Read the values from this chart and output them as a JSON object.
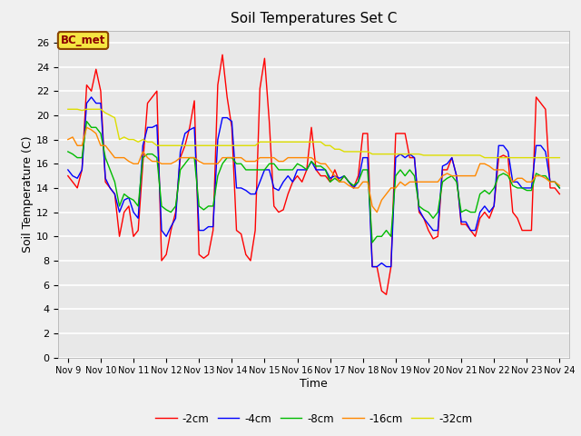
{
  "title": "Soil Temperatures Set C",
  "xlabel": "Time",
  "ylabel": "Soil Temperature (C)",
  "annotation": "BC_met",
  "ylim": [
    0,
    27
  ],
  "yticks": [
    0,
    2,
    4,
    6,
    8,
    10,
    12,
    14,
    16,
    18,
    20,
    22,
    24,
    26
  ],
  "xtick_labels": [
    "Nov 9",
    "Nov 10",
    "Nov 11",
    "Nov 12",
    "Nov 13",
    "Nov 14",
    "Nov 15",
    "Nov 16",
    "Nov 17",
    "Nov 18",
    "Nov 19",
    "Nov 20",
    "Nov 21",
    "Nov 22",
    "Nov 23",
    "Nov 24"
  ],
  "series": {
    "-2cm": {
      "color": "#ff0000",
      "data": [
        15.0,
        14.5,
        14.0,
        15.5,
        22.5,
        22.0,
        23.8,
        22.0,
        14.5,
        14.0,
        13.5,
        10.0,
        12.0,
        12.5,
        10.0,
        10.5,
        16.0,
        21.0,
        21.5,
        22.0,
        8.0,
        8.5,
        10.5,
        12.0,
        16.5,
        17.5,
        19.0,
        21.2,
        8.5,
        8.2,
        8.5,
        10.5,
        22.5,
        25.0,
        21.5,
        19.0,
        10.5,
        10.2,
        8.5,
        8.0,
        10.5,
        22.2,
        24.7,
        19.5,
        12.5,
        12.0,
        12.2,
        13.5,
        14.5,
        15.0,
        14.5,
        15.5,
        19.0,
        15.5,
        15.0,
        15.0,
        14.5,
        15.5,
        14.5,
        15.0,
        14.5,
        14.0,
        15.0,
        18.5,
        18.5,
        7.5,
        7.5,
        5.5,
        5.2,
        7.5,
        18.5,
        18.5,
        18.5,
        16.5,
        16.5,
        12.0,
        11.5,
        10.5,
        9.8,
        10.0,
        15.5,
        15.5,
        16.5,
        15.0,
        11.0,
        11.0,
        10.5,
        10.0,
        11.5,
        12.0,
        11.5,
        12.5,
        16.5,
        16.7,
        16.5,
        12.0,
        11.5,
        10.5,
        10.5,
        10.5,
        21.5,
        21.0,
        20.5,
        14.0,
        14.0,
        13.5
      ]
    },
    "-4cm": {
      "color": "#0000ff",
      "data": [
        15.5,
        15.0,
        14.8,
        15.5,
        21.0,
        21.5,
        21.0,
        21.0,
        14.8,
        14.0,
        13.5,
        12.0,
        13.0,
        13.2,
        12.0,
        11.5,
        17.5,
        19.0,
        19.0,
        19.2,
        10.5,
        10.0,
        10.8,
        11.5,
        17.0,
        18.5,
        18.8,
        19.0,
        10.5,
        10.5,
        10.8,
        10.8,
        18.0,
        19.8,
        19.8,
        19.5,
        14.0,
        14.0,
        13.8,
        13.5,
        13.5,
        14.5,
        15.5,
        15.5,
        14.0,
        13.8,
        14.5,
        15.0,
        14.5,
        15.5,
        15.5,
        15.5,
        16.2,
        15.5,
        15.5,
        15.5,
        14.8,
        15.0,
        14.8,
        15.0,
        14.5,
        14.0,
        14.5,
        16.5,
        16.5,
        7.5,
        7.5,
        7.8,
        7.5,
        7.5,
        16.5,
        16.8,
        16.5,
        16.8,
        16.5,
        12.2,
        11.5,
        11.0,
        10.5,
        10.5,
        15.8,
        16.0,
        16.5,
        15.0,
        11.2,
        11.2,
        10.5,
        10.5,
        12.0,
        12.5,
        12.0,
        12.5,
        17.5,
        17.5,
        17.0,
        14.5,
        14.5,
        14.0,
        14.0,
        14.0,
        17.5,
        17.5,
        17.0,
        14.5,
        14.5,
        14.0
      ]
    },
    "-8cm": {
      "color": "#00bb00",
      "data": [
        17.0,
        16.8,
        16.5,
        16.5,
        19.5,
        19.0,
        19.0,
        18.5,
        16.5,
        15.5,
        14.5,
        12.5,
        13.5,
        13.2,
        13.0,
        12.5,
        16.5,
        16.8,
        16.8,
        16.5,
        12.5,
        12.2,
        12.0,
        12.5,
        15.5,
        16.0,
        16.5,
        16.5,
        12.5,
        12.2,
        12.5,
        12.5,
        15.0,
        16.0,
        16.5,
        16.5,
        16.0,
        16.0,
        15.5,
        15.5,
        15.5,
        15.5,
        15.5,
        16.0,
        16.0,
        15.5,
        15.5,
        15.5,
        15.5,
        16.0,
        15.8,
        15.5,
        16.2,
        15.8,
        15.8,
        15.5,
        14.5,
        14.8,
        14.5,
        15.0,
        14.5,
        14.2,
        14.5,
        15.5,
        15.5,
        9.5,
        10.0,
        10.0,
        10.5,
        10.0,
        15.0,
        15.5,
        15.0,
        15.5,
        15.0,
        12.5,
        12.2,
        12.0,
        11.5,
        12.0,
        14.5,
        14.8,
        15.0,
        14.5,
        12.0,
        12.2,
        12.0,
        12.0,
        13.5,
        13.8,
        13.5,
        14.0,
        15.0,
        15.2,
        15.0,
        14.2,
        14.0,
        14.0,
        13.8,
        13.8,
        15.2,
        15.0,
        15.0,
        14.5,
        14.5,
        14.0
      ]
    },
    "-16cm": {
      "color": "#ff8800",
      "data": [
        18.0,
        18.2,
        17.5,
        17.5,
        19.0,
        18.8,
        18.5,
        17.5,
        17.5,
        17.0,
        16.5,
        16.5,
        16.5,
        16.2,
        16.0,
        16.0,
        17.0,
        16.5,
        16.2,
        16.2,
        16.0,
        16.0,
        16.0,
        16.2,
        16.5,
        16.5,
        16.5,
        16.5,
        16.2,
        16.0,
        16.0,
        16.0,
        16.0,
        16.5,
        16.5,
        16.5,
        16.5,
        16.5,
        16.2,
        16.2,
        16.2,
        16.5,
        16.5,
        16.5,
        16.5,
        16.2,
        16.2,
        16.5,
        16.5,
        16.5,
        16.5,
        16.5,
        16.5,
        16.2,
        16.0,
        16.0,
        15.5,
        15.0,
        14.5,
        14.5,
        14.2,
        14.0,
        14.0,
        14.5,
        14.5,
        12.5,
        12.0,
        13.0,
        13.5,
        14.0,
        14.0,
        14.5,
        14.2,
        14.5,
        14.5,
        14.5,
        14.5,
        14.5,
        14.5,
        14.5,
        15.0,
        15.2,
        15.0,
        15.0,
        15.0,
        15.0,
        15.0,
        15.0,
        16.0,
        16.0,
        15.8,
        15.5,
        15.5,
        15.5,
        15.2,
        14.5,
        14.8,
        14.8,
        14.5,
        14.5,
        15.0,
        15.0,
        14.8,
        14.5,
        14.5,
        14.2
      ]
    },
    "-32cm": {
      "color": "#dddd00",
      "data": [
        20.5,
        20.5,
        20.5,
        20.4,
        20.5,
        20.5,
        20.5,
        20.5,
        20.2,
        20.0,
        19.8,
        18.0,
        18.2,
        18.0,
        18.0,
        17.8,
        18.0,
        17.8,
        17.8,
        17.5,
        17.5,
        17.5,
        17.5,
        17.5,
        17.5,
        17.5,
        17.5,
        17.5,
        17.5,
        17.5,
        17.5,
        17.5,
        17.5,
        17.5,
        17.5,
        17.5,
        17.5,
        17.5,
        17.5,
        17.5,
        17.5,
        17.8,
        17.8,
        17.8,
        17.8,
        17.8,
        17.8,
        17.8,
        17.8,
        17.8,
        17.8,
        17.8,
        17.8,
        17.8,
        17.8,
        17.5,
        17.5,
        17.2,
        17.2,
        17.0,
        17.0,
        17.0,
        17.0,
        17.0,
        17.0,
        16.8,
        16.8,
        16.8,
        16.8,
        16.8,
        16.8,
        16.8,
        16.8,
        16.8,
        16.8,
        16.8,
        16.7,
        16.7,
        16.7,
        16.7,
        16.7,
        16.7,
        16.7,
        16.7,
        16.7,
        16.7,
        16.7,
        16.7,
        16.7,
        16.5,
        16.5,
        16.5,
        16.5,
        16.5,
        16.5,
        16.5,
        16.5,
        16.5,
        16.5,
        16.5,
        16.5,
        16.5,
        16.5,
        16.5,
        16.5,
        16.5
      ]
    }
  },
  "fig_bg_color": "#f0f0f0",
  "plot_bg_color": "#e8e8e8",
  "grid_color": "#ffffff",
  "spine_color": "#aaaaaa"
}
